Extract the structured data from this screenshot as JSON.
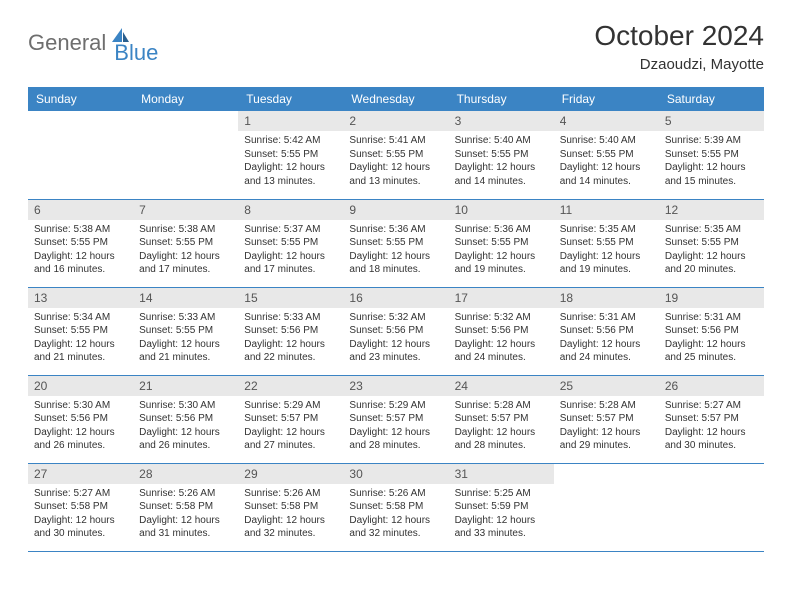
{
  "logo": {
    "text1": "General",
    "text2": "Blue"
  },
  "title": "October 2024",
  "location": "Dzaoudzi, Mayotte",
  "colors": {
    "header_bg": "#3b84c4",
    "daynum_bg": "#e8e8e8",
    "border": "#3b84c4",
    "logo_gray": "#6e6e6e",
    "logo_blue": "#3b84c4"
  },
  "day_names": [
    "Sunday",
    "Monday",
    "Tuesday",
    "Wednesday",
    "Thursday",
    "Friday",
    "Saturday"
  ],
  "weeks": [
    [
      null,
      null,
      {
        "n": "1",
        "sr": "Sunrise: 5:42 AM",
        "ss": "Sunset: 5:55 PM",
        "d1": "Daylight: 12 hours",
        "d2": "and 13 minutes."
      },
      {
        "n": "2",
        "sr": "Sunrise: 5:41 AM",
        "ss": "Sunset: 5:55 PM",
        "d1": "Daylight: 12 hours",
        "d2": "and 13 minutes."
      },
      {
        "n": "3",
        "sr": "Sunrise: 5:40 AM",
        "ss": "Sunset: 5:55 PM",
        "d1": "Daylight: 12 hours",
        "d2": "and 14 minutes."
      },
      {
        "n": "4",
        "sr": "Sunrise: 5:40 AM",
        "ss": "Sunset: 5:55 PM",
        "d1": "Daylight: 12 hours",
        "d2": "and 14 minutes."
      },
      {
        "n": "5",
        "sr": "Sunrise: 5:39 AM",
        "ss": "Sunset: 5:55 PM",
        "d1": "Daylight: 12 hours",
        "d2": "and 15 minutes."
      }
    ],
    [
      {
        "n": "6",
        "sr": "Sunrise: 5:38 AM",
        "ss": "Sunset: 5:55 PM",
        "d1": "Daylight: 12 hours",
        "d2": "and 16 minutes."
      },
      {
        "n": "7",
        "sr": "Sunrise: 5:38 AM",
        "ss": "Sunset: 5:55 PM",
        "d1": "Daylight: 12 hours",
        "d2": "and 17 minutes."
      },
      {
        "n": "8",
        "sr": "Sunrise: 5:37 AM",
        "ss": "Sunset: 5:55 PM",
        "d1": "Daylight: 12 hours",
        "d2": "and 17 minutes."
      },
      {
        "n": "9",
        "sr": "Sunrise: 5:36 AM",
        "ss": "Sunset: 5:55 PM",
        "d1": "Daylight: 12 hours",
        "d2": "and 18 minutes."
      },
      {
        "n": "10",
        "sr": "Sunrise: 5:36 AM",
        "ss": "Sunset: 5:55 PM",
        "d1": "Daylight: 12 hours",
        "d2": "and 19 minutes."
      },
      {
        "n": "11",
        "sr": "Sunrise: 5:35 AM",
        "ss": "Sunset: 5:55 PM",
        "d1": "Daylight: 12 hours",
        "d2": "and 19 minutes."
      },
      {
        "n": "12",
        "sr": "Sunrise: 5:35 AM",
        "ss": "Sunset: 5:55 PM",
        "d1": "Daylight: 12 hours",
        "d2": "and 20 minutes."
      }
    ],
    [
      {
        "n": "13",
        "sr": "Sunrise: 5:34 AM",
        "ss": "Sunset: 5:55 PM",
        "d1": "Daylight: 12 hours",
        "d2": "and 21 minutes."
      },
      {
        "n": "14",
        "sr": "Sunrise: 5:33 AM",
        "ss": "Sunset: 5:55 PM",
        "d1": "Daylight: 12 hours",
        "d2": "and 21 minutes."
      },
      {
        "n": "15",
        "sr": "Sunrise: 5:33 AM",
        "ss": "Sunset: 5:56 PM",
        "d1": "Daylight: 12 hours",
        "d2": "and 22 minutes."
      },
      {
        "n": "16",
        "sr": "Sunrise: 5:32 AM",
        "ss": "Sunset: 5:56 PM",
        "d1": "Daylight: 12 hours",
        "d2": "and 23 minutes."
      },
      {
        "n": "17",
        "sr": "Sunrise: 5:32 AM",
        "ss": "Sunset: 5:56 PM",
        "d1": "Daylight: 12 hours",
        "d2": "and 24 minutes."
      },
      {
        "n": "18",
        "sr": "Sunrise: 5:31 AM",
        "ss": "Sunset: 5:56 PM",
        "d1": "Daylight: 12 hours",
        "d2": "and 24 minutes."
      },
      {
        "n": "19",
        "sr": "Sunrise: 5:31 AM",
        "ss": "Sunset: 5:56 PM",
        "d1": "Daylight: 12 hours",
        "d2": "and 25 minutes."
      }
    ],
    [
      {
        "n": "20",
        "sr": "Sunrise: 5:30 AM",
        "ss": "Sunset: 5:56 PM",
        "d1": "Daylight: 12 hours",
        "d2": "and 26 minutes."
      },
      {
        "n": "21",
        "sr": "Sunrise: 5:30 AM",
        "ss": "Sunset: 5:56 PM",
        "d1": "Daylight: 12 hours",
        "d2": "and 26 minutes."
      },
      {
        "n": "22",
        "sr": "Sunrise: 5:29 AM",
        "ss": "Sunset: 5:57 PM",
        "d1": "Daylight: 12 hours",
        "d2": "and 27 minutes."
      },
      {
        "n": "23",
        "sr": "Sunrise: 5:29 AM",
        "ss": "Sunset: 5:57 PM",
        "d1": "Daylight: 12 hours",
        "d2": "and 28 minutes."
      },
      {
        "n": "24",
        "sr": "Sunrise: 5:28 AM",
        "ss": "Sunset: 5:57 PM",
        "d1": "Daylight: 12 hours",
        "d2": "and 28 minutes."
      },
      {
        "n": "25",
        "sr": "Sunrise: 5:28 AM",
        "ss": "Sunset: 5:57 PM",
        "d1": "Daylight: 12 hours",
        "d2": "and 29 minutes."
      },
      {
        "n": "26",
        "sr": "Sunrise: 5:27 AM",
        "ss": "Sunset: 5:57 PM",
        "d1": "Daylight: 12 hours",
        "d2": "and 30 minutes."
      }
    ],
    [
      {
        "n": "27",
        "sr": "Sunrise: 5:27 AM",
        "ss": "Sunset: 5:58 PM",
        "d1": "Daylight: 12 hours",
        "d2": "and 30 minutes."
      },
      {
        "n": "28",
        "sr": "Sunrise: 5:26 AM",
        "ss": "Sunset: 5:58 PM",
        "d1": "Daylight: 12 hours",
        "d2": "and 31 minutes."
      },
      {
        "n": "29",
        "sr": "Sunrise: 5:26 AM",
        "ss": "Sunset: 5:58 PM",
        "d1": "Daylight: 12 hours",
        "d2": "and 32 minutes."
      },
      {
        "n": "30",
        "sr": "Sunrise: 5:26 AM",
        "ss": "Sunset: 5:58 PM",
        "d1": "Daylight: 12 hours",
        "d2": "and 32 minutes."
      },
      {
        "n": "31",
        "sr": "Sunrise: 5:25 AM",
        "ss": "Sunset: 5:59 PM",
        "d1": "Daylight: 12 hours",
        "d2": "and 33 minutes."
      },
      null,
      null
    ]
  ]
}
